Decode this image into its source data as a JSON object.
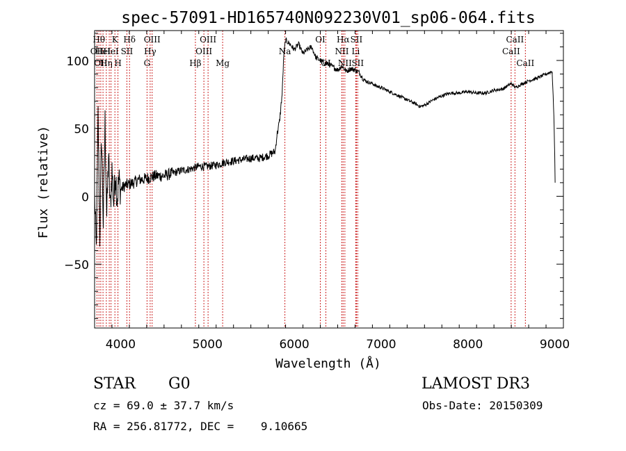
{
  "chart_data": {
    "type": "line",
    "title": "spec-57091-HD165740N092230V01_sp06-064.fits",
    "xlabel": "Wavelength (Å)",
    "ylabel": "Flux (relative)",
    "xlim": [
      3700,
      9100
    ],
    "ylim": [
      -97,
      122
    ],
    "xticks": [
      4000,
      5000,
      6000,
      7000,
      8000,
      9000
    ],
    "yticks": [
      -50,
      0,
      50,
      100
    ],
    "grid": false,
    "series": [
      {
        "name": "flux",
        "x": [
          3700,
          3720,
          3740,
          3760,
          3780,
          3800,
          3820,
          3840,
          3860,
          3880,
          3900,
          3920,
          3940,
          3960,
          3980,
          4000,
          4050,
          4100,
          4150,
          4200,
          4300,
          4400,
          4500,
          4600,
          4700,
          4800,
          4900,
          5000,
          5100,
          5200,
          5300,
          5400,
          5500,
          5600,
          5700,
          5780,
          5800,
          5830,
          5860,
          5880,
          5900,
          5950,
          6000,
          6050,
          6100,
          6150,
          6200,
          6250,
          6300,
          6350,
          6400,
          6450,
          6500,
          6550,
          6600,
          6650,
          6700,
          6750,
          6800,
          6850,
          6900,
          6950,
          7000,
          7100,
          7200,
          7300,
          7400,
          7450,
          7500,
          7600,
          7700,
          7800,
          7900,
          8000,
          8100,
          8200,
          8300,
          8400,
          8500,
          8550,
          8600,
          8700,
          8800,
          8900,
          8970,
          8990,
          9000,
          9005
        ],
        "y": [
          0,
          -40,
          60,
          -30,
          45,
          -20,
          55,
          -15,
          30,
          -10,
          20,
          -5,
          18,
          -2,
          12,
          5,
          8,
          9,
          10,
          12,
          13,
          15,
          15,
          17,
          19,
          20,
          22,
          22,
          23,
          25,
          26,
          27,
          28,
          28,
          30,
          33,
          45,
          55,
          75,
          105,
          115,
          112,
          108,
          112,
          105,
          108,
          110,
          102,
          100,
          98,
          97,
          95,
          93,
          96,
          92,
          94,
          93,
          91,
          86,
          84,
          83,
          81,
          80,
          77,
          74,
          71,
          68,
          66,
          67,
          71,
          74,
          76,
          76,
          77,
          76,
          76,
          78,
          79,
          83,
          80,
          82,
          85,
          87,
          90,
          92,
          60,
          30,
          10
        ]
      }
    ],
    "line_markers": [
      {
        "wavelength": 3727,
        "label": "OII",
        "row": 1
      },
      {
        "wavelength": 3750,
        "label": "Hθ",
        "row": 0
      },
      {
        "wavelength": 3771,
        "label": "OII",
        "row": 2
      },
      {
        "wavelength": 3797,
        "label": "HeI",
        "row": 1
      },
      {
        "wavelength": 3835,
        "label": "Hη",
        "row": 2
      },
      {
        "wavelength": 3869,
        "label": "",
        "row": 2
      },
      {
        "wavelength": 3889,
        "label": "HeI",
        "row": 1
      },
      {
        "wavelength": 3934,
        "label": "K",
        "row": 0
      },
      {
        "wavelength": 3969,
        "label": "H",
        "row": 2
      },
      {
        "wavelength": 4072,
        "label": "SII",
        "row": 1
      },
      {
        "wavelength": 4102,
        "label": "Hδ",
        "row": 0
      },
      {
        "wavelength": 4304,
        "label": "G",
        "row": 2
      },
      {
        "wavelength": 4340,
        "label": "Hγ",
        "row": 1
      },
      {
        "wavelength": 4363,
        "label": "OIII",
        "row": 0
      },
      {
        "wavelength": 4861,
        "label": "Hβ",
        "row": 2
      },
      {
        "wavelength": 4959,
        "label": "OIII",
        "row": 1
      },
      {
        "wavelength": 5007,
        "label": "OIII",
        "row": 0
      },
      {
        "wavelength": 5175,
        "label": "Mg",
        "row": 2
      },
      {
        "wavelength": 5892,
        "label": "Na",
        "row": 1
      },
      {
        "wavelength": 6300,
        "label": "OI",
        "row": 0
      },
      {
        "wavelength": 6364,
        "label": "OI",
        "row": 2
      },
      {
        "wavelength": 6548,
        "label": "NII",
        "row": 1
      },
      {
        "wavelength": 6563,
        "label": "Hα",
        "row": 0
      },
      {
        "wavelength": 6583,
        "label": "NII",
        "row": 2
      },
      {
        "wavelength": 6708,
        "label": "Li",
        "row": 1
      },
      {
        "wavelength": 6716,
        "label": "SII",
        "row": 0
      },
      {
        "wavelength": 6731,
        "label": "SII",
        "row": 2
      },
      {
        "wavelength": 8498,
        "label": "CaII",
        "row": 1
      },
      {
        "wavelength": 8542,
        "label": "CaII",
        "row": 0
      },
      {
        "wavelength": 8662,
        "label": "CaII",
        "row": 2
      }
    ]
  },
  "info": {
    "class_label": "STAR",
    "subclass": "G0",
    "survey": "LAMOST DR3",
    "cz_text": "cz = 69.0 ± 37.7 km/s",
    "obs_date_text": "Obs-Date: 20150309",
    "radec_text": "RA = 256.81772, DEC =    9.10665"
  }
}
